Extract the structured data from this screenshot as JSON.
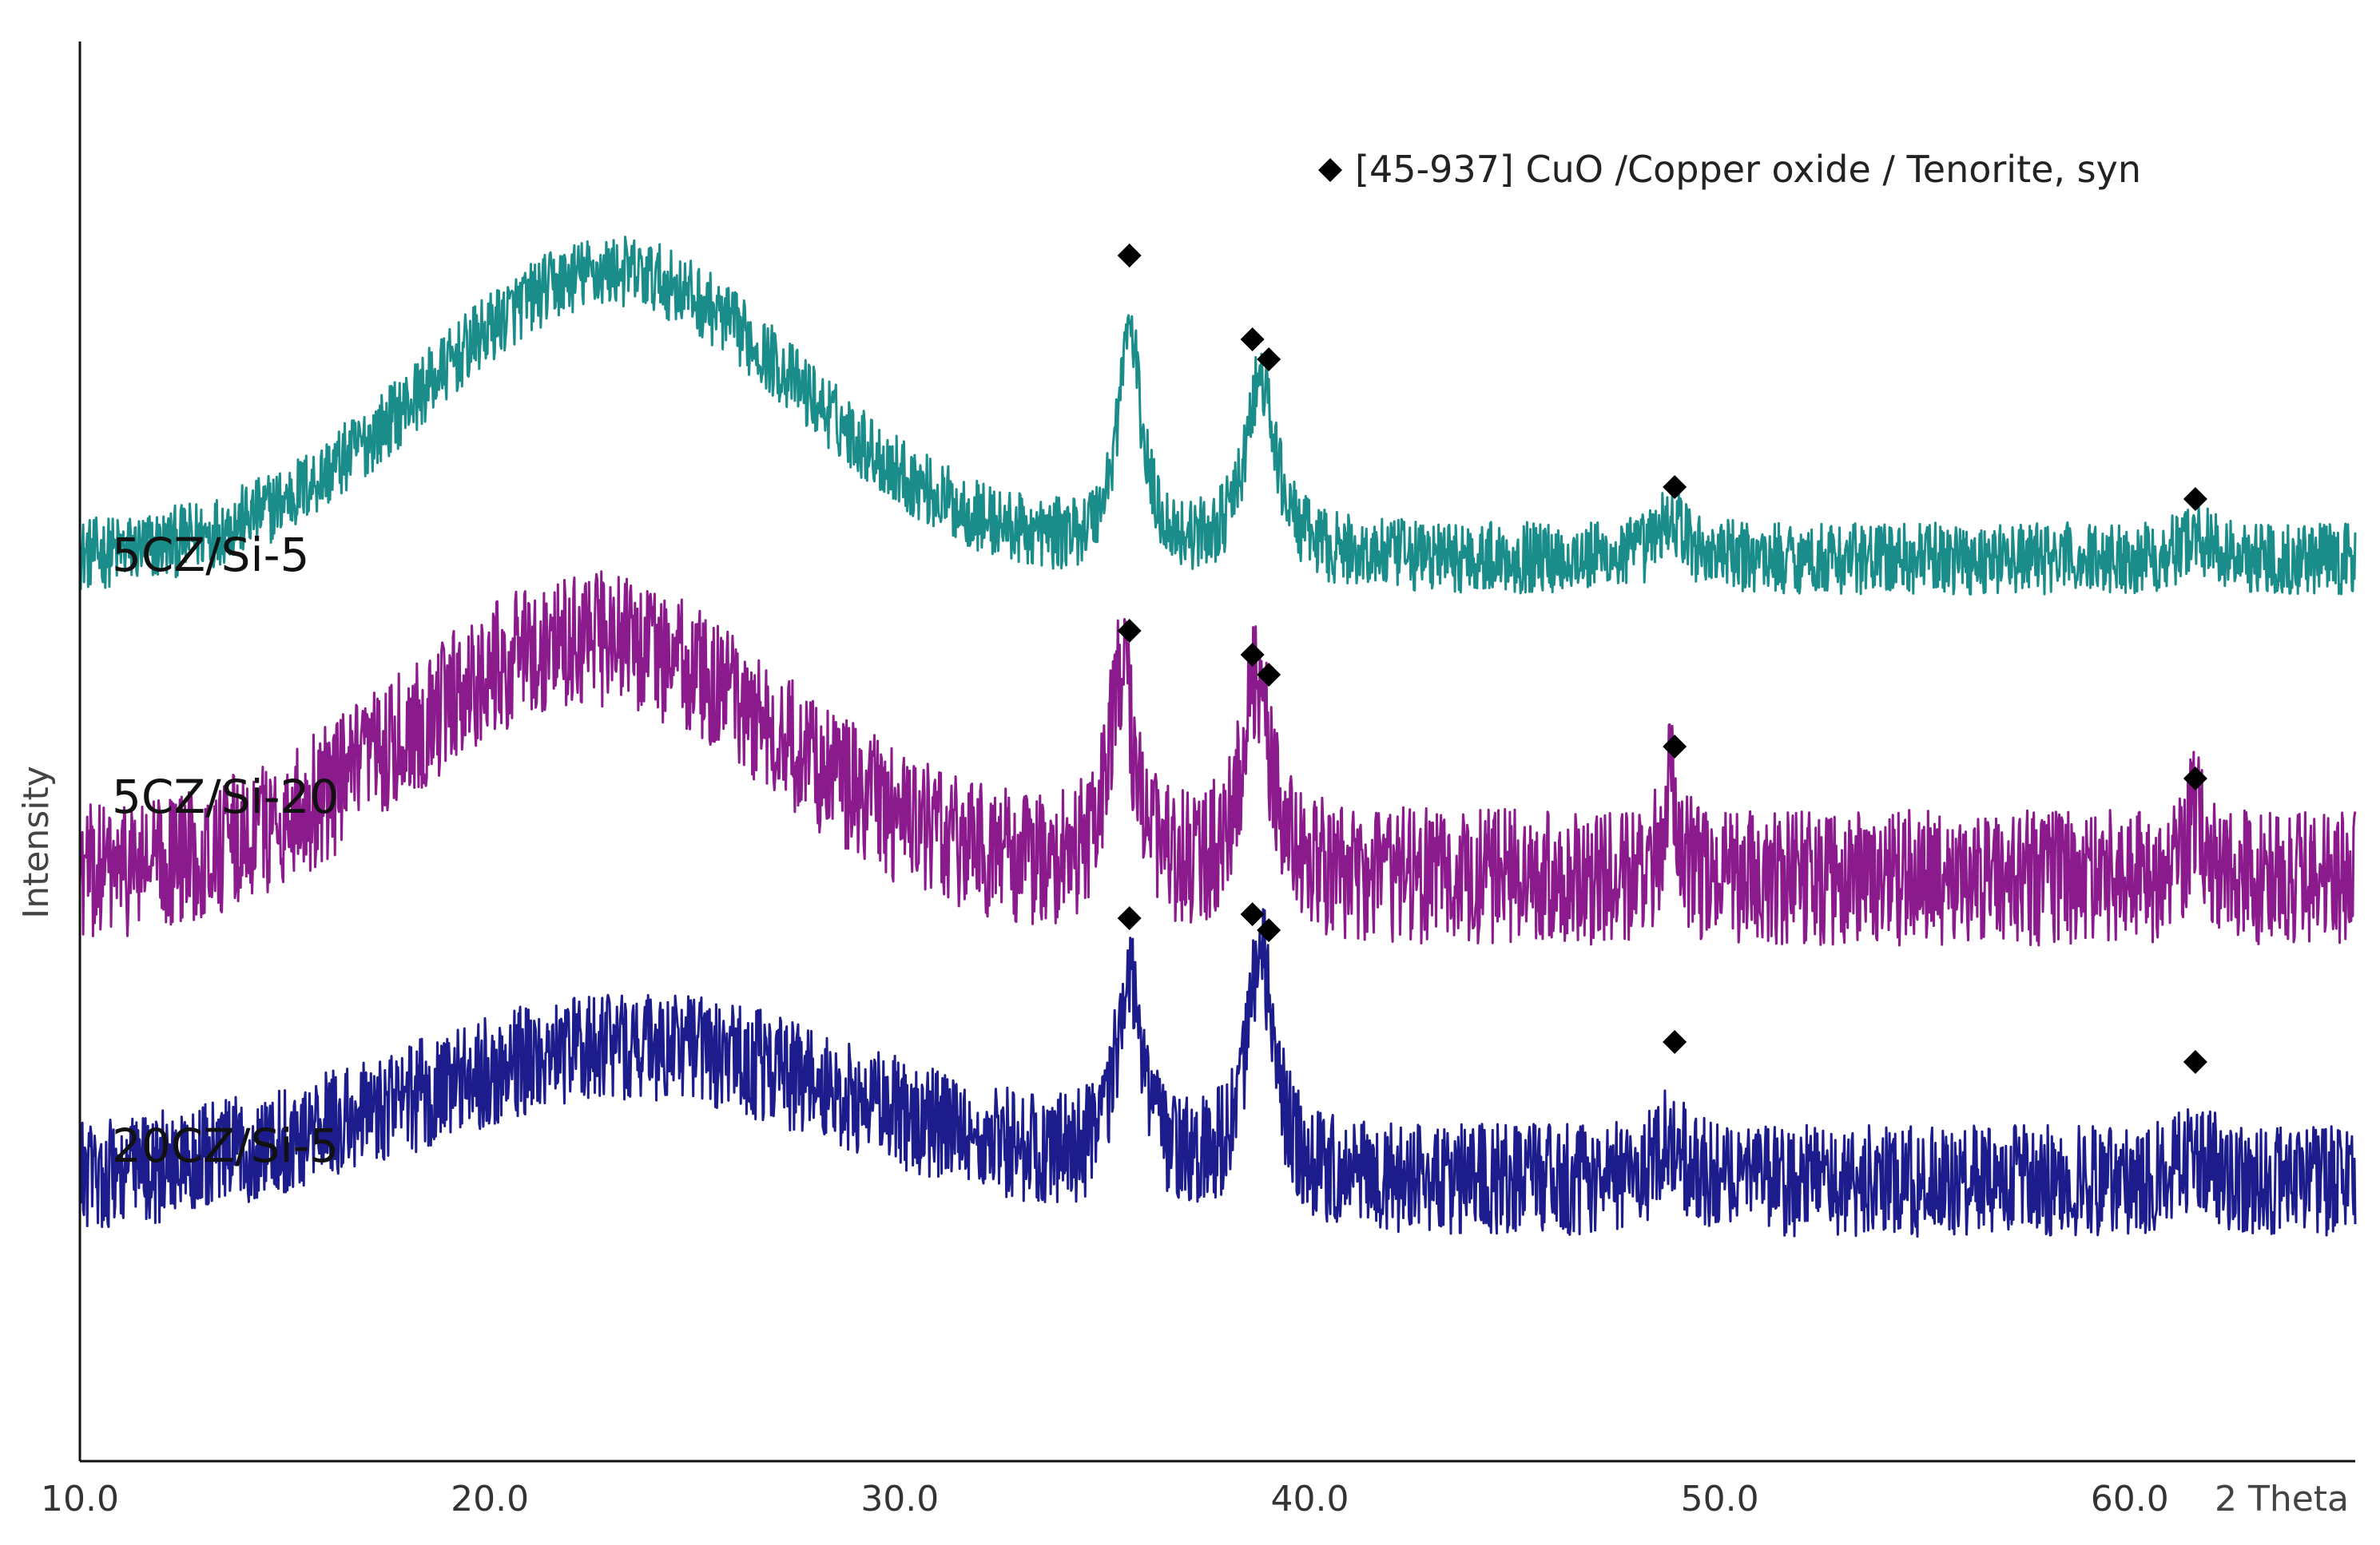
{
  "chart_data": {
    "type": "line",
    "xlabel": "2 Theta",
    "ylabel": "Intensity",
    "xlim": [
      10.0,
      65.5
    ],
    "x_ticks": [
      "10.0",
      "20.0",
      "30.0",
      "40.0",
      "50.0",
      "60.0"
    ],
    "x_tick_values": [
      10,
      20,
      30,
      40,
      50,
      60
    ],
    "legend": {
      "symbol": "◆",
      "text": "[45-937] CuO /Copper oxide / Tenorite, syn",
      "position": "top-right"
    },
    "series": [
      {
        "name": "5CZ/Si-5",
        "color": "#1a8c8a",
        "baseline": 0.8,
        "noise": 0.45,
        "humps": [
          {
            "center": 23.0,
            "height": 3.6,
            "width": 4.5
          }
        ],
        "peaks": [
          {
            "x": 35.6,
            "height": 2.8,
            "width": 0.35
          },
          {
            "x": 38.8,
            "height": 2.2,
            "width": 0.45
          },
          {
            "x": 48.8,
            "height": 0.5,
            "width": 0.4
          },
          {
            "x": 61.6,
            "height": 0.3,
            "width": 0.4
          }
        ],
        "markers": [
          {
            "x": 35.6,
            "y": 4.6
          },
          {
            "x": 38.6,
            "y": 3.55
          },
          {
            "x": 39.0,
            "y": 3.3
          },
          {
            "x": 48.9,
            "y": 1.7
          },
          {
            "x": 61.6,
            "y": 1.55
          }
        ]
      },
      {
        "name": "5CZ/Si-20",
        "color": "#8b1a8c",
        "baseline": 0.7,
        "noise": 0.85,
        "humps": [
          {
            "center": 22.5,
            "height": 3.0,
            "width": 4.5
          }
        ],
        "peaks": [
          {
            "x": 35.4,
            "height": 2.6,
            "width": 0.35
          },
          {
            "x": 38.7,
            "height": 2.5,
            "width": 0.4
          },
          {
            "x": 48.8,
            "height": 1.2,
            "width": 0.2
          },
          {
            "x": 61.6,
            "height": 0.8,
            "width": 0.25
          }
        ],
        "markers": [
          {
            "x": 35.6,
            "y": 3.8
          },
          {
            "x": 38.6,
            "y": 3.5
          },
          {
            "x": 39.0,
            "y": 3.25
          },
          {
            "x": 48.9,
            "y": 2.35
          },
          {
            "x": 61.6,
            "y": 1.95
          }
        ]
      },
      {
        "name": "20CZ/Si-5",
        "color": "#1c1c8c",
        "baseline": 0.6,
        "noise": 0.7,
        "humps": [
          {
            "center": 23.5,
            "height": 1.7,
            "width": 5.5
          }
        ],
        "peaks": [
          {
            "x": 35.6,
            "height": 2.6,
            "width": 0.35
          },
          {
            "x": 38.8,
            "height": 2.8,
            "width": 0.4
          },
          {
            "x": 48.8,
            "height": 0.5,
            "width": 0.4
          },
          {
            "x": 61.6,
            "height": 0.4,
            "width": 0.4
          }
        ],
        "markers": [
          {
            "x": 35.6,
            "y": 3.9
          },
          {
            "x": 38.6,
            "y": 3.95
          },
          {
            "x": 39.0,
            "y": 3.75
          },
          {
            "x": 48.9,
            "y": 2.35
          },
          {
            "x": 61.6,
            "y": 2.1
          }
        ]
      }
    ]
  }
}
